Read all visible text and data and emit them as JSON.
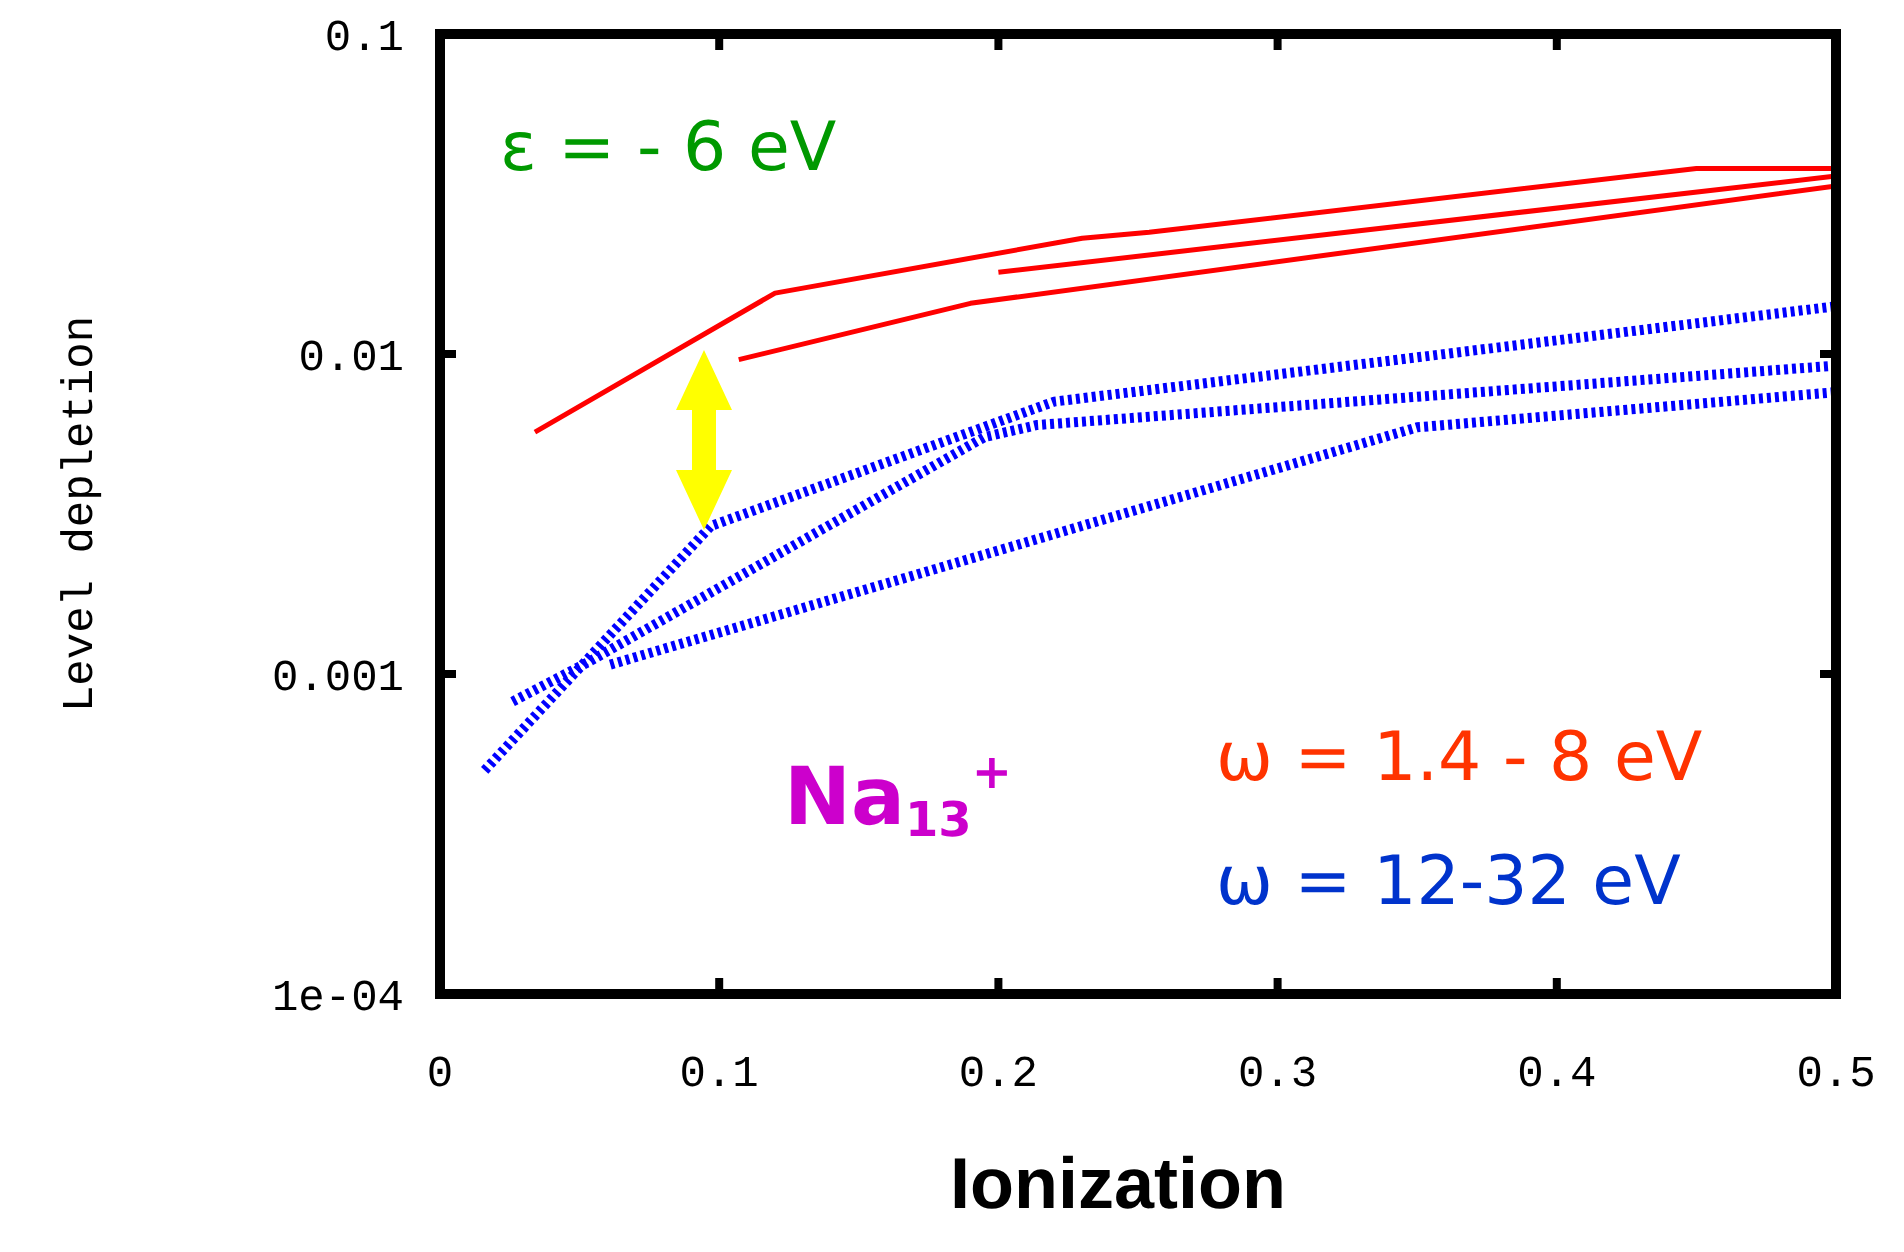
{
  "chart_data": {
    "type": "line",
    "xlabel": "Ionization",
    "ylabel": "Level depletion",
    "log": "y",
    "xlim": [
      0,
      0.5
    ],
    "xticks": [
      0,
      0.1,
      0.2,
      0.3,
      0.4,
      0.5
    ],
    "ylim": [
      0.0001,
      0.1
    ],
    "yticks": [
      0.1,
      0.01,
      0.001,
      {
        "value": 0.0001,
        "label": "1e-04"
      }
    ],
    "grid": false,
    "marker": "none",
    "series": [
      {
        "color": "#ff0000",
        "line_style": "solid",
        "x": [
          0.034,
          0.12,
          0.23,
          0.254,
          0.45,
          0.5
        ],
        "values": [
          0.0057,
          0.0155,
          0.023,
          0.024,
          0.038,
          0.038
        ]
      },
      {
        "color": "#ff0000",
        "line_style": "solid",
        "x": [
          0.2,
          0.5
        ],
        "values": [
          0.018,
          0.036
        ]
      },
      {
        "color": "#ff0000",
        "line_style": "solid",
        "x": [
          0.107,
          0.19,
          0.5
        ],
        "values": [
          0.0096,
          0.0144,
          0.0335
        ]
      },
      {
        "color": "#0000ff",
        "line_style": "dotted",
        "x": [
          0.016,
          0.097,
          0.22,
          0.5
        ],
        "values": [
          0.0005,
          0.0029,
          0.0071,
          0.0141
        ]
      },
      {
        "color": "#0000ff",
        "line_style": "dotted",
        "x": [
          0.026,
          0.054,
          0.195,
          0.214,
          0.5
        ],
        "values": [
          0.00082,
          0.0011,
          0.0055,
          0.006,
          0.0092
        ]
      },
      {
        "color": "#0000ff",
        "line_style": "dotted",
        "x": [
          0.061,
          0.35,
          0.5
        ],
        "values": [
          0.00107,
          0.0059,
          0.0076
        ]
      }
    ],
    "annotations": [
      "ε = - 6 eV",
      "Na$_{13}$$^{+}$",
      "ω = 1.4 - 8 eV",
      "ω = 12-32 eV"
    ]
  }
}
